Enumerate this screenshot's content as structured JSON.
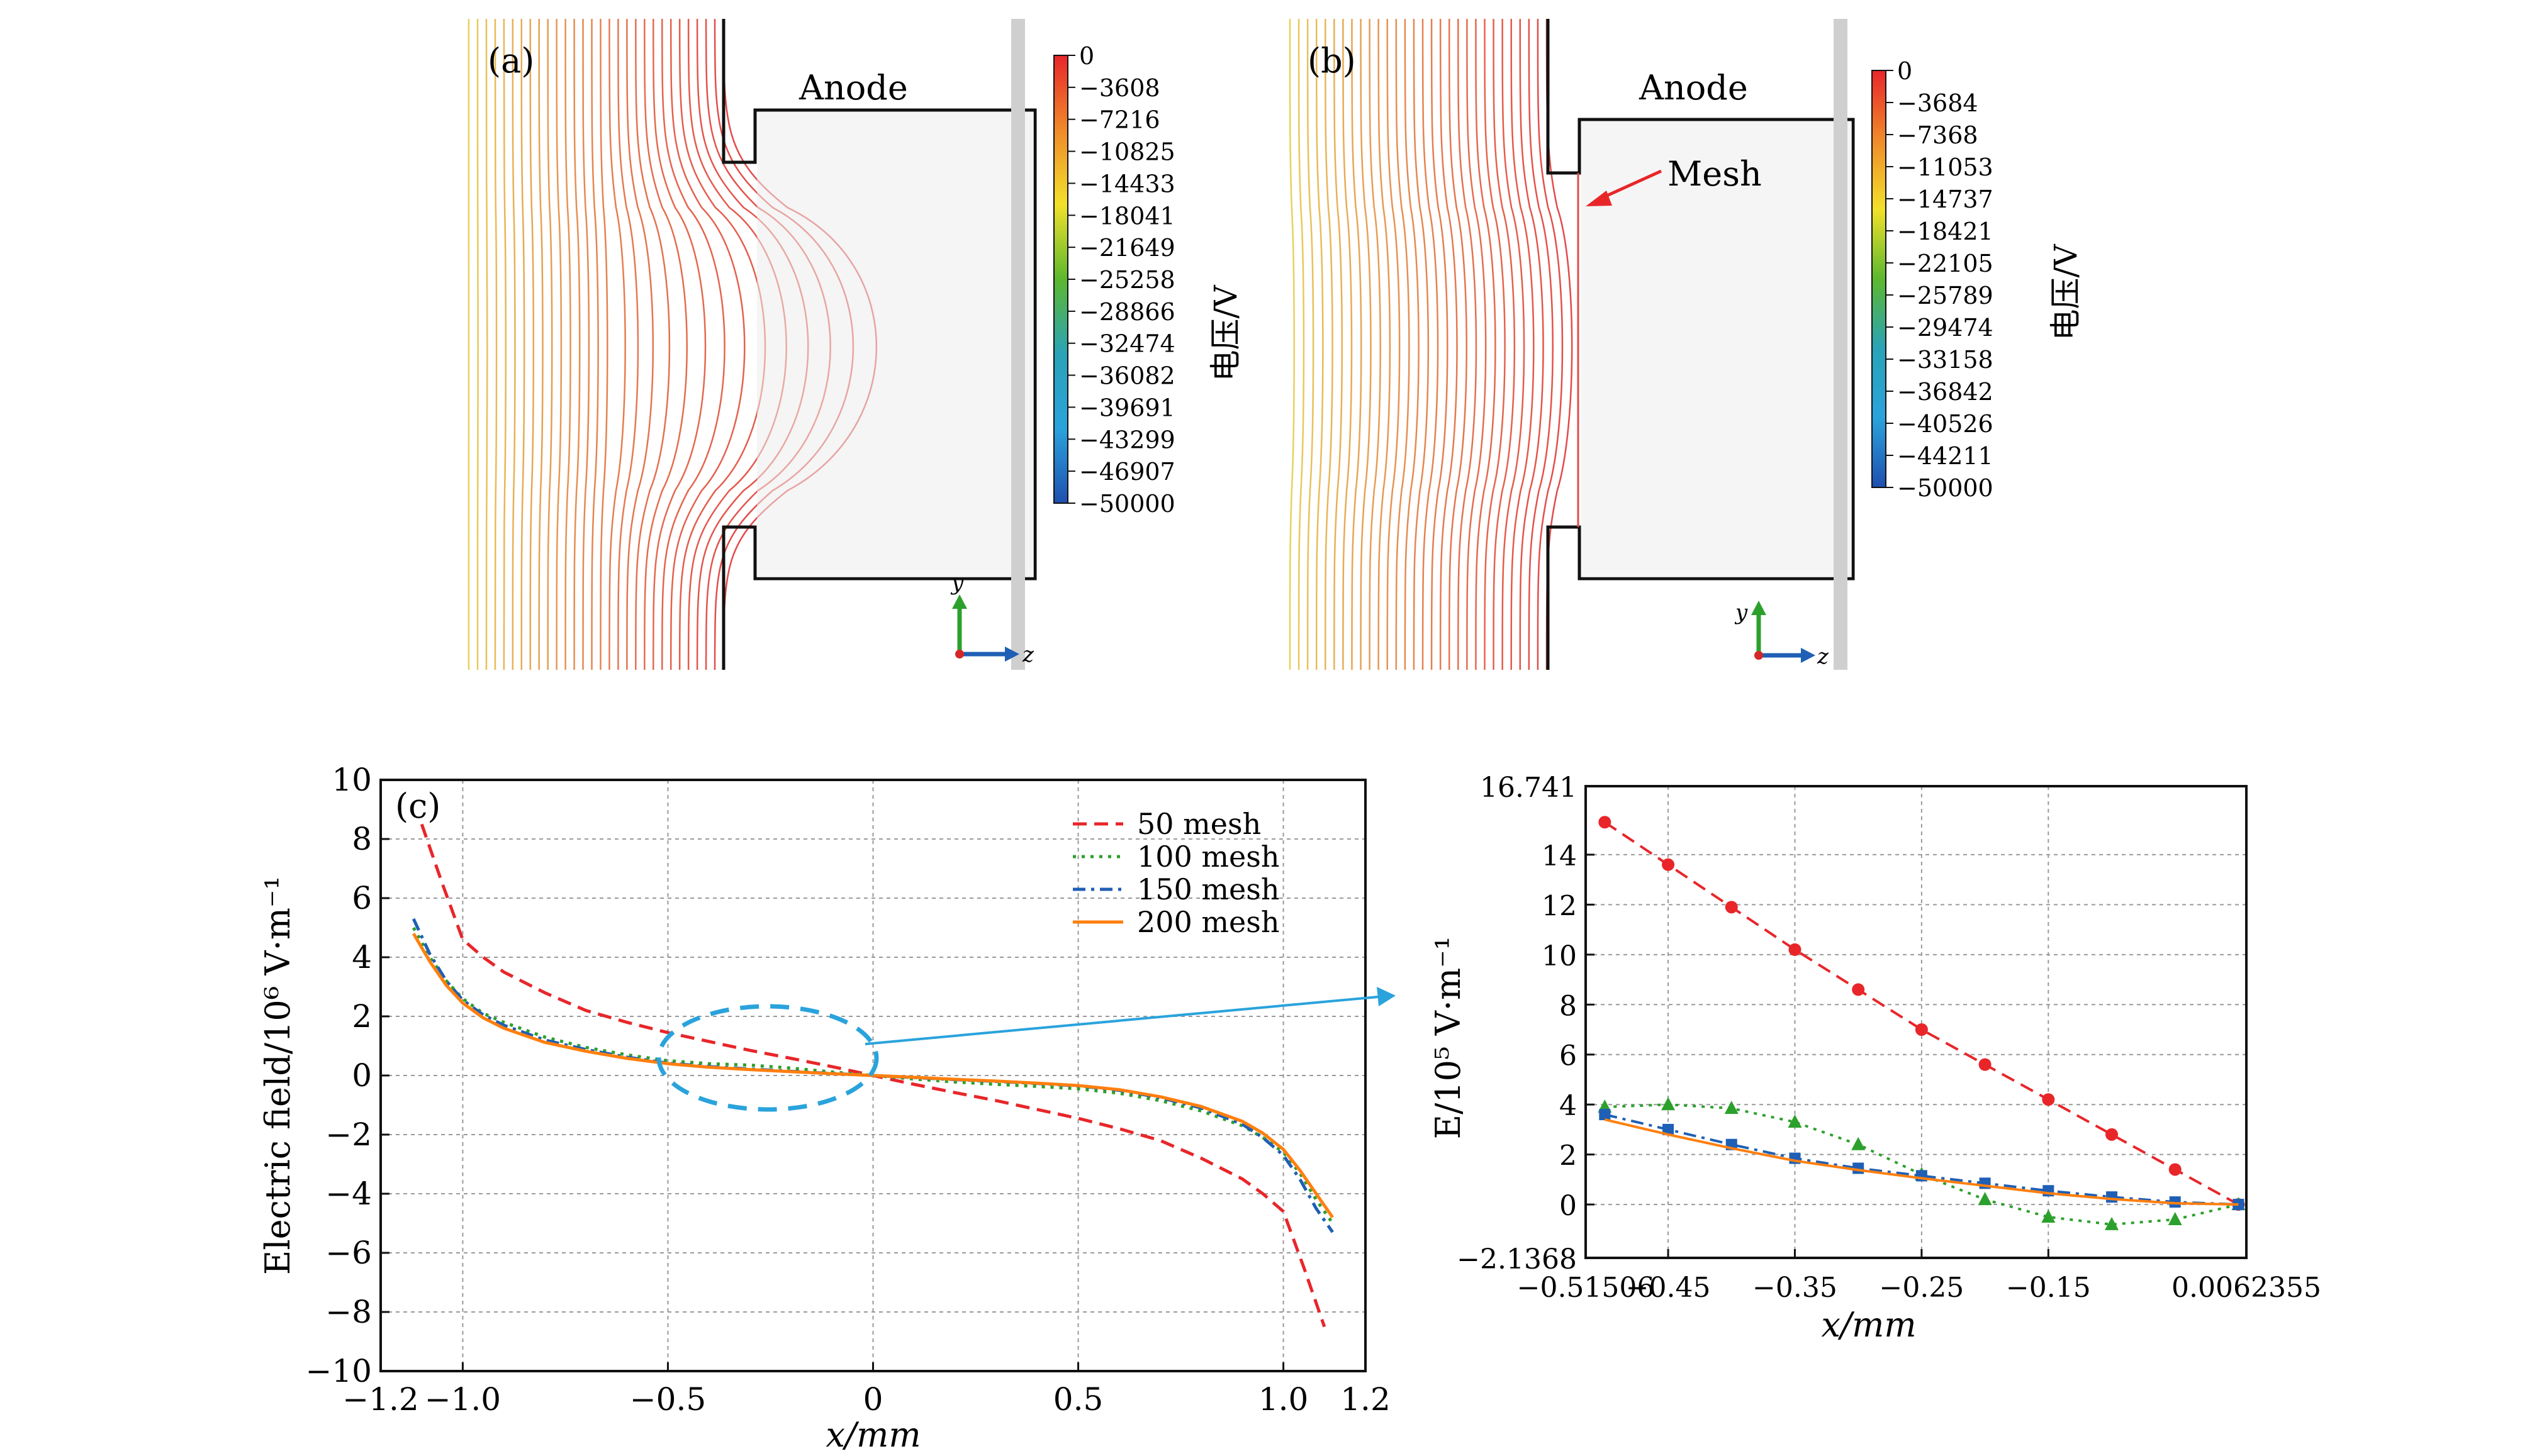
{
  "panel_a": {
    "label": "(a)",
    "anode_label": "Anode",
    "colorbar_unit": "电压/V",
    "colorbar_ticks": [
      "0",
      "−3608",
      "−7216",
      "−10825",
      "−14433",
      "−18041",
      "−21649",
      "−25258",
      "−28866",
      "−32474",
      "−36082",
      "−39691",
      "−43299",
      "−46907",
      "−50000"
    ],
    "axis_y": "y",
    "axis_z": "z"
  },
  "panel_b": {
    "label": "(b)",
    "anode_label": "Anode",
    "mesh_label": "Mesh",
    "colorbar_unit": "电压/V",
    "colorbar_ticks": [
      "0",
      "−3684",
      "−7368",
      "−11053",
      "−14737",
      "−18421",
      "−22105",
      "−25789",
      "−29474",
      "−33158",
      "−36842",
      "−40526",
      "−44211",
      "−50000"
    ],
    "axis_y": "y",
    "axis_z": "z"
  },
  "colors": {
    "red": "#e8262a",
    "green": "#2ca02c",
    "blue": "#1f5fb5",
    "orange": "#ff7f0e",
    "cyan": "#2aa3dc",
    "field_line_warm": "#e34a4a",
    "field_line_cool": "#e8d25a"
  },
  "chart_data": [
    {
      "type": "line",
      "panel_label": "(c)",
      "xlabel": "x/mm",
      "ylabel": "Electric field/10⁶ V·m⁻¹",
      "xlim": [
        -1.2,
        1.2
      ],
      "ylim": [
        -10,
        10
      ],
      "xticks": [
        -1.2,
        -1.0,
        -0.5,
        0,
        0.5,
        1.0,
        1.2
      ],
      "xtick_labels": [
        "−1.2",
        "−1.0",
        "−0.5",
        "0",
        "0.5",
        "1.0",
        "1.2"
      ],
      "yticks": [
        -10,
        -8,
        -6,
        -4,
        -2,
        0,
        2,
        4,
        6,
        8,
        10
      ],
      "ytick_labels": [
        "−10",
        "−8",
        "−6",
        "−4",
        "−2",
        "0",
        "2",
        "4",
        "6",
        "8",
        "10"
      ],
      "grid": true,
      "legend_position": "top-right",
      "series": [
        {
          "name": "50 mesh",
          "color": "#e8262a",
          "style": "dashed",
          "x": [
            -1.1,
            -1.05,
            -1.0,
            -0.95,
            -0.9,
            -0.8,
            -0.7,
            -0.6,
            -0.5,
            -0.4,
            -0.3,
            -0.2,
            -0.1,
            0,
            0.1,
            0.2,
            0.3,
            0.4,
            0.5,
            0.6,
            0.7,
            0.8,
            0.9,
            0.95,
            1.0,
            1.05,
            1.1
          ],
          "y": [
            8.5,
            6.5,
            4.6,
            4.0,
            3.5,
            2.8,
            2.2,
            1.8,
            1.45,
            1.15,
            0.85,
            0.58,
            0.3,
            0.0,
            -0.3,
            -0.58,
            -0.85,
            -1.15,
            -1.45,
            -1.8,
            -2.2,
            -2.8,
            -3.5,
            -4.0,
            -4.6,
            -6.5,
            -8.5
          ]
        },
        {
          "name": "100 mesh",
          "color": "#2ca02c",
          "style": "dotted",
          "x": [
            -1.12,
            -1.08,
            -1.04,
            -1.0,
            -0.95,
            -0.9,
            -0.8,
            -0.7,
            -0.6,
            -0.5,
            -0.4,
            -0.3,
            -0.2,
            -0.1,
            0,
            0.1,
            0.2,
            0.3,
            0.4,
            0.5,
            0.6,
            0.7,
            0.8,
            0.9,
            0.95,
            1.0,
            1.04,
            1.08,
            1.12
          ],
          "y": [
            5.0,
            4.0,
            3.2,
            2.6,
            2.1,
            1.8,
            1.3,
            0.95,
            0.7,
            0.5,
            0.4,
            0.35,
            0.25,
            0.12,
            0.0,
            -0.12,
            -0.22,
            -0.3,
            -0.37,
            -0.45,
            -0.6,
            -0.85,
            -1.2,
            -1.7,
            -2.1,
            -2.6,
            -3.3,
            -4.2,
            -5.0
          ]
        },
        {
          "name": "150 mesh",
          "color": "#1f5fb5",
          "style": "dashdot",
          "x": [
            -1.12,
            -1.08,
            -1.04,
            -1.0,
            -0.95,
            -0.9,
            -0.8,
            -0.7,
            -0.6,
            -0.5,
            -0.4,
            -0.3,
            -0.2,
            -0.1,
            0,
            0.1,
            0.2,
            0.3,
            0.4,
            0.5,
            0.6,
            0.7,
            0.8,
            0.9,
            0.95,
            1.0,
            1.04,
            1.08,
            1.12
          ],
          "y": [
            5.3,
            4.1,
            3.2,
            2.55,
            2.05,
            1.7,
            1.2,
            0.88,
            0.62,
            0.42,
            0.3,
            0.22,
            0.14,
            0.07,
            0.0,
            -0.07,
            -0.14,
            -0.2,
            -0.27,
            -0.35,
            -0.5,
            -0.75,
            -1.1,
            -1.65,
            -2.1,
            -2.7,
            -3.5,
            -4.5,
            -5.3
          ]
        },
        {
          "name": "200 mesh",
          "color": "#ff7f0e",
          "style": "solid",
          "x": [
            -1.12,
            -1.08,
            -1.04,
            -1.0,
            -0.95,
            -0.9,
            -0.8,
            -0.7,
            -0.6,
            -0.5,
            -0.4,
            -0.3,
            -0.2,
            -0.1,
            0,
            0.1,
            0.2,
            0.3,
            0.4,
            0.5,
            0.6,
            0.7,
            0.8,
            0.9,
            0.95,
            1.0,
            1.04,
            1.08,
            1.12
          ],
          "y": [
            4.8,
            3.85,
            3.05,
            2.45,
            1.95,
            1.6,
            1.12,
            0.82,
            0.58,
            0.4,
            0.28,
            0.2,
            0.13,
            0.06,
            0.0,
            -0.06,
            -0.13,
            -0.19,
            -0.26,
            -0.34,
            -0.48,
            -0.72,
            -1.05,
            -1.55,
            -1.95,
            -2.5,
            -3.2,
            -4.0,
            -4.8
          ]
        }
      ]
    },
    {
      "type": "line",
      "xlabel": "x/mm",
      "ylabel": "E/10⁵ V·m⁻¹",
      "xlim": [
        -0.51506,
        0.0062355
      ],
      "ylim": [
        -2.1368,
        16.741
      ],
      "xtick_labels": [
        "−0.51506",
        "−0.45",
        "−0.35",
        "−0.25",
        "−0.15",
        "0.0062355"
      ],
      "xticks": [
        -0.51506,
        -0.45,
        -0.35,
        -0.25,
        -0.15,
        0.0062355
      ],
      "ytick_labels": [
        "−2.1368",
        "0",
        "2",
        "4",
        "6",
        "8",
        "10",
        "12",
        "14",
        "16.741"
      ],
      "yticks": [
        -2.1368,
        0,
        2,
        4,
        6,
        8,
        10,
        12,
        14,
        16.741
      ],
      "grid": true,
      "series": [
        {
          "name": "50 mesh",
          "color": "#e8262a",
          "style": "dashed",
          "marker": "circle",
          "x": [
            -0.5,
            -0.45,
            -0.4,
            -0.35,
            -0.3,
            -0.25,
            -0.2,
            -0.15,
            -0.1,
            -0.05,
            0.0
          ],
          "y": [
            15.3,
            13.6,
            11.9,
            10.2,
            8.6,
            7.0,
            5.6,
            4.2,
            2.8,
            1.4,
            0.0
          ]
        },
        {
          "name": "100 mesh",
          "color": "#2ca02c",
          "style": "dotted",
          "marker": "triangle",
          "x": [
            -0.5,
            -0.45,
            -0.4,
            -0.35,
            -0.3,
            -0.25,
            -0.2,
            -0.15,
            -0.1,
            -0.05,
            0.0
          ],
          "y": [
            3.9,
            4.0,
            3.85,
            3.3,
            2.4,
            1.2,
            0.2,
            -0.5,
            -0.8,
            -0.6,
            0.0
          ]
        },
        {
          "name": "150 mesh",
          "color": "#1f5fb5",
          "style": "dashdot",
          "marker": "square",
          "x": [
            -0.5,
            -0.45,
            -0.4,
            -0.35,
            -0.3,
            -0.25,
            -0.2,
            -0.15,
            -0.1,
            -0.05,
            0.0
          ],
          "y": [
            3.6,
            3.0,
            2.4,
            1.85,
            1.45,
            1.15,
            0.85,
            0.55,
            0.3,
            0.1,
            0.0
          ]
        },
        {
          "name": "200 mesh",
          "color": "#ff7f0e",
          "style": "solid",
          "marker": "none",
          "x": [
            -0.5,
            -0.45,
            -0.4,
            -0.35,
            -0.3,
            -0.25,
            -0.2,
            -0.15,
            -0.1,
            -0.05,
            0.0
          ],
          "y": [
            3.4,
            2.8,
            2.25,
            1.75,
            1.38,
            1.05,
            0.75,
            0.45,
            0.22,
            0.05,
            0.0
          ]
        }
      ]
    }
  ]
}
